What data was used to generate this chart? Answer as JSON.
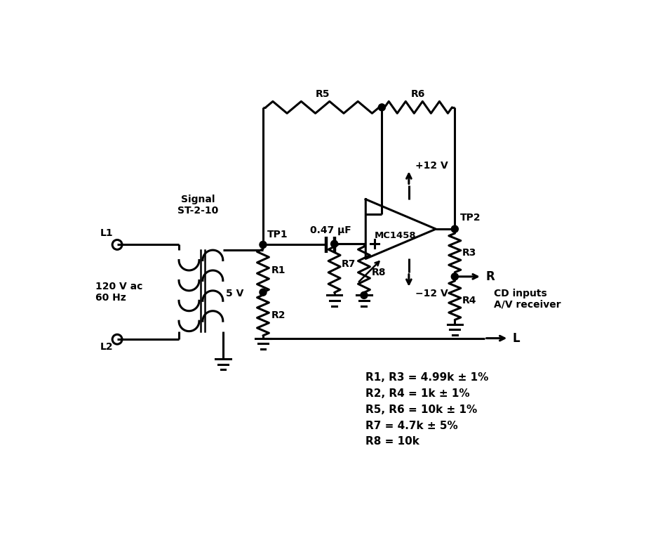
{
  "bg_color": "#ffffff",
  "line_color": "#000000",
  "lw": 2.2,
  "annotations": {
    "L1": "L1",
    "L2": "L2",
    "Signal": "Signal\nST-2-10",
    "5V": "5 V",
    "120V": "120 V ac\n60 Hz",
    "TP1": "TP1",
    "TP2": "TP2",
    "R1": "R1",
    "R2": "R2",
    "R3": "R3",
    "R4": "R4",
    "R5": "R5",
    "R6": "R6",
    "R7": "R7",
    "R8": "R8",
    "cap": "0.47 μF",
    "MC1458": "MC1458",
    "plus12": "+12 V",
    "minus12": "−12 V",
    "R_out": "R",
    "L_out": "L",
    "CD_inputs": "CD inputs\nA/V receiver",
    "specs": "R1, R3 = 4.99k ± 1%\nR2, R4 = 1k ± 1%\nR5, R6 = 10k ± 1%\nR7 = 4.7k ± 5%\nR8 = 10k"
  }
}
